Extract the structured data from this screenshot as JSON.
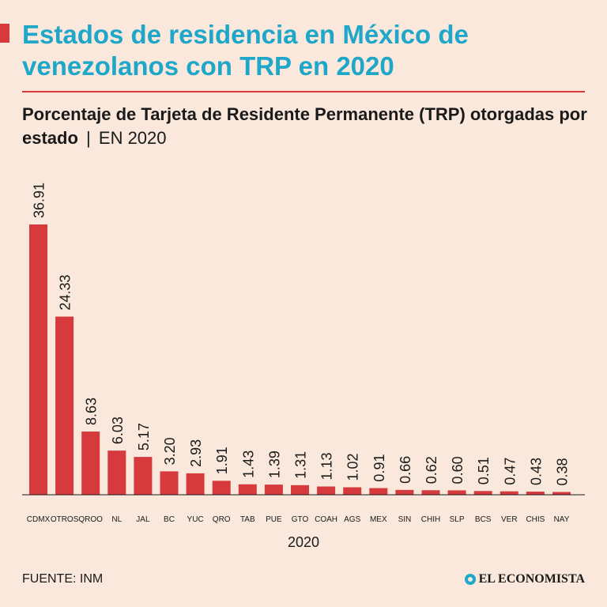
{
  "header": {
    "title": "Estados de residencia en México de venezolanos con TRP en 2020",
    "subtitle_bold": "Porcentaje de Tarjeta de Residente Permanente (TRP) otorgadas por estado",
    "subtitle_separator": "|",
    "subtitle_light": "EN 2020"
  },
  "footer": {
    "source": "FUENTE: INM",
    "brand": "EL ECONOMISTA",
    "brand_icon": "el-economista-logo-icon"
  },
  "colors": {
    "background": "#f9e8db",
    "title": "#1ea7c9",
    "bar": "#d63a3d",
    "axis": "#1a1a1a"
  },
  "chart_data": {
    "type": "bar",
    "categories": [
      "CDMX",
      "OTROS",
      "QROO",
      "NL",
      "JAL",
      "BC",
      "YUC",
      "QRO",
      "TAB",
      "PUE",
      "GTO",
      "COAH",
      "AGS",
      "MEX",
      "SIN",
      "CHIH",
      "SLP",
      "BCS",
      "VER",
      "CHIS",
      "NAY"
    ],
    "values": [
      36.91,
      24.33,
      8.63,
      6.03,
      5.17,
      3.2,
      2.93,
      1.91,
      1.43,
      1.39,
      1.31,
      1.13,
      1.02,
      0.91,
      0.66,
      0.62,
      0.6,
      0.51,
      0.47,
      0.43,
      0.38
    ],
    "value_labels": [
      "36.91",
      "24.33",
      "8.63",
      "6.03",
      "5.17",
      "3.20",
      "2.93",
      "1.91",
      "1.43",
      "1.39",
      "1.31",
      "1.13",
      "1.02",
      "0.91",
      "0.66",
      "0.62",
      "0.60",
      "0.51",
      "0.47",
      "0.43",
      "0.38"
    ],
    "xlabel": "2020",
    "ylabel": "",
    "ylim": [
      0,
      36.91
    ],
    "grid": false,
    "legend": "none"
  }
}
